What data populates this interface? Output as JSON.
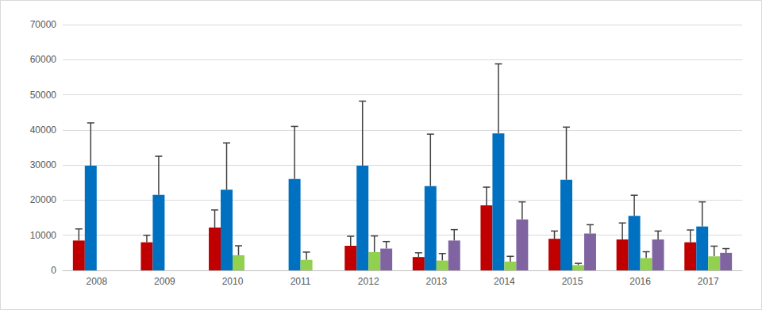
{
  "chart_data": {
    "type": "bar",
    "categories": [
      "2008",
      "2009",
      "2010",
      "2011",
      "2012",
      "2013",
      "2014",
      "2015",
      "2016",
      "2017"
    ],
    "series": [
      {
        "color": "#c00000",
        "values": [
          8500,
          8000,
          12200,
          null,
          7000,
          3800,
          18500,
          9000,
          8800,
          8000
        ],
        "errors": [
          3300,
          2000,
          5000,
          null,
          2700,
          1200,
          5200,
          2200,
          4700,
          3500
        ]
      },
      {
        "color": "#0070c0",
        "values": [
          29800,
          21500,
          23000,
          26000,
          29800,
          24000,
          39000,
          25800,
          15500,
          12500
        ],
        "errors": [
          12200,
          11000,
          13300,
          15000,
          18400,
          14800,
          19800,
          15000,
          5900,
          7000
        ]
      },
      {
        "color": "#92d050",
        "values": [
          null,
          null,
          4300,
          3000,
          5200,
          2800,
          2500,
          1500,
          3500,
          4000
        ],
        "errors": [
          null,
          null,
          2700,
          2200,
          4600,
          2000,
          1500,
          500,
          1800,
          2900
        ]
      },
      {
        "color": "#8064a2",
        "values": [
          null,
          null,
          null,
          null,
          6200,
          8500,
          14500,
          10500,
          8800,
          5000
        ],
        "errors": [
          null,
          null,
          null,
          null,
          2000,
          3100,
          5000,
          2500,
          2400,
          1200
        ]
      }
    ],
    "ylim": [
      0,
      70000
    ],
    "yticks": [
      0,
      10000,
      20000,
      30000,
      40000,
      50000,
      60000,
      70000
    ],
    "grid": true
  }
}
